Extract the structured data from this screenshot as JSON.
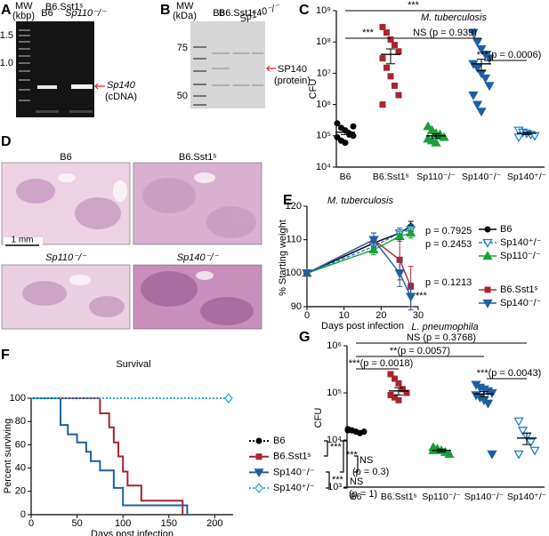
{
  "figure": {
    "letters": [
      "A",
      "B",
      "C",
      "D",
      "E",
      "F",
      "G"
    ],
    "gel_a": {
      "mw": "MW",
      "unit": "(kbp)",
      "lanes": [
        "B6",
        "B6.Sst1ˢ",
        "Sp110⁻/⁻"
      ],
      "markers": [
        "1.5",
        "1.0"
      ],
      "band": "Sp140",
      "band_note": "(cDNA)"
    },
    "gel_b": {
      "mw": "MW",
      "unit": "(kDa)",
      "lanes": [
        "B6",
        "B6.Sst1ˢ",
        "Sp140⁻/⁻"
      ],
      "markers": [
        "75",
        "50"
      ],
      "band": "SP140",
      "band_note": "(protein)"
    },
    "histology": {
      "panels": [
        "B6",
        "B6.Sst1ˢ",
        "Sp110⁻/⁻",
        "Sp140⁻/⁻"
      ],
      "scale": "1 mm"
    }
  },
  "chart_data": [
    {
      "type": "dotplot",
      "title": "M. tuberculosis",
      "ylabel": "CFU",
      "log": true,
      "ylim": [
        10000,
        1000000000
      ],
      "yticks": [
        {
          "value": 10000,
          "label": "10⁴"
        },
        {
          "value": 100000,
          "label": "10⁵"
        },
        {
          "value": 1000000,
          "label": "10⁶"
        },
        {
          "value": 10000000,
          "label": "10⁷"
        },
        {
          "value": 100000000,
          "label": "10⁸"
        },
        {
          "value": 1000000000,
          "label": "10⁹"
        }
      ],
      "groups": [
        {
          "name": "B6",
          "color": "#000000",
          "marker": "circle",
          "values": [
            250000,
            180000,
            150000,
            120000,
            100000,
            90000,
            70000,
            60000,
            110000,
            200000
          ],
          "mean": 130000,
          "error": 20000
        },
        {
          "name": "B6.Sst1ˢ",
          "color": "#a8262d",
          "marker": "square",
          "values": [
            300000000,
            200000000,
            120000000,
            80000000,
            50000000,
            30000000,
            15000000,
            8000000,
            4000000,
            2000000,
            1000000
          ],
          "mean": 40000000,
          "error": 20000000
        },
        {
          "name": "Sp110⁻/⁻",
          "color": "#1a9e3a",
          "marker": "triangle",
          "values": [
            200000,
            150000,
            120000,
            100000,
            90000,
            80000,
            70000,
            60000,
            110000
          ],
          "mean": 100000,
          "error": 15000
        },
        {
          "name": "Sp140⁻/⁻",
          "color": "#1f5fa0",
          "marker": "triangle-down",
          "values": [
            200000000,
            100000000,
            60000000,
            40000000,
            30000000,
            20000000,
            15000000,
            10000000,
            7000000,
            4000000,
            2000000,
            1000000,
            600000
          ],
          "mean": 20000000,
          "error": 8000000
        },
        {
          "name": "Sp140⁺/⁻",
          "color": "#1e7fc8",
          "marker": "triangle-down-open",
          "values": [
            150000,
            130000,
            120000,
            110000,
            100000,
            90000
          ],
          "mean": 120000,
          "error": 10000
        }
      ],
      "annotations": [
        "***",
        "***",
        "NS (p = 0.939)",
        "***(p = 0.0006)"
      ]
    },
    {
      "type": "line",
      "title": "M. tuberculosis",
      "xlabel": "Days post infection",
      "ylabel": "% Starting weight",
      "x": [
        0,
        18,
        25,
        28
      ],
      "xlim": [
        0,
        30
      ],
      "xticks": [
        0,
        10,
        20,
        30
      ],
      "ylim": [
        90,
        120
      ],
      "yticks": [
        90,
        100,
        110,
        120
      ],
      "series": [
        {
          "name": "B6",
          "color": "#000000",
          "marker": "circle",
          "style": "solid",
          "values": [
            100,
            109,
            112,
            114
          ],
          "error": [
            0,
            1.5,
            1.5,
            1.5
          ]
        },
        {
          "name": "Sp140⁺/⁻",
          "color": "#1e7fc8",
          "marker": "triangle-down-open",
          "style": "dashed",
          "values": [
            100,
            108,
            112,
            113
          ],
          "error": [
            0,
            1.5,
            1.5,
            1.5
          ]
        },
        {
          "name": "Sp110⁻/⁻",
          "color": "#1a9e3a",
          "marker": "triangle",
          "style": "solid",
          "values": [
            100,
            107,
            111,
            112
          ],
          "error": [
            0,
            1.5,
            1.5,
            1.5
          ]
        },
        {
          "name": "B6.Sst1ˢ",
          "color": "#a8262d",
          "marker": "square",
          "style": "solid",
          "values": [
            100,
            110,
            104,
            96
          ],
          "error": [
            0,
            2,
            6,
            6
          ]
        },
        {
          "name": "Sp140⁻/⁻",
          "color": "#1f5fa0",
          "marker": "triangle-down",
          "style": "solid",
          "values": [
            100,
            110,
            100,
            93
          ],
          "error": [
            0,
            2,
            4,
            4
          ]
        }
      ],
      "annotations": [
        "p = 0.7925",
        "p = 0.2453",
        "p = 0.1213",
        "***"
      ]
    },
    {
      "type": "step",
      "title": "Survival",
      "xlabel": "Days post infection",
      "ylabel": "Percent surviving",
      "xlim": [
        0,
        220
      ],
      "xticks": [
        0,
        50,
        100,
        150,
        200
      ],
      "ylim": [
        0,
        100
      ],
      "yticks": [
        0,
        20,
        40,
        60,
        80,
        100
      ],
      "series": [
        {
          "name": "B6",
          "color": "#000000",
          "marker": "circle",
          "style": "dotted",
          "x": [
            0,
            215
          ],
          "values": [
            100,
            100
          ]
        },
        {
          "name": "B6.Sst1ˢ",
          "color": "#a8262d",
          "marker": "square",
          "style": "solid",
          "x": [
            0,
            75,
            85,
            90,
            95,
            100,
            105,
            120,
            165
          ],
          "values": [
            100,
            87,
            75,
            62,
            50,
            37,
            25,
            12,
            0
          ]
        },
        {
          "name": "Sp140⁻/⁻",
          "color": "#1f5fa0",
          "marker": "triangle-down",
          "style": "solid",
          "x": [
            0,
            32,
            40,
            50,
            60,
            65,
            75,
            90,
            100,
            170
          ],
          "values": [
            100,
            77,
            69,
            62,
            54,
            46,
            38,
            23,
            8,
            0
          ]
        },
        {
          "name": "Sp140⁺/⁻",
          "color": "#2ab0d8",
          "marker": "diamond-open",
          "style": "dotted",
          "x": [
            0,
            215
          ],
          "values": [
            100,
            100
          ]
        }
      ],
      "annotations": [
        "***",
        "***",
        "NS",
        "(p = 0.3)",
        "***",
        "NS",
        "(p = 1)"
      ]
    },
    {
      "type": "dotplot",
      "title": "L. pneumophila",
      "ylabel": "CFU",
      "log": true,
      "ylim": [
        1000,
        1000000
      ],
      "yticks": [
        {
          "value": 1000,
          "label": "10³"
        },
        {
          "value": 10000,
          "label": "10⁴"
        },
        {
          "value": 100000,
          "label": "10⁵"
        },
        {
          "value": 1000000,
          "label": "10⁶"
        }
      ],
      "groups": [
        {
          "name": "B6",
          "color": "#000000",
          "marker": "circle",
          "values": [
            17000,
            16000,
            15000,
            14000,
            15000,
            16000
          ],
          "mean": 15000,
          "error": 800
        },
        {
          "name": "B6.Sst1ˢ",
          "color": "#a8262d",
          "marker": "square",
          "values": [
            250000,
            200000,
            160000,
            120000,
            100000,
            90000,
            80000,
            70000
          ],
          "mean": 110000,
          "error": 20000
        },
        {
          "name": "Sp110⁻/⁻",
          "color": "#1a9e3a",
          "marker": "triangle",
          "values": [
            7000,
            6500,
            6000,
            5500,
            5000,
            6000
          ],
          "mean": 6000,
          "error": 400
        },
        {
          "name": "Sp140⁻/⁻",
          "color": "#1f5fa0",
          "marker": "triangle-down",
          "values": [
            150000,
            130000,
            120000,
            110000,
            100000,
            90000,
            80000,
            70000,
            60000,
            5000
          ],
          "mean": 95000,
          "error": 12000
        },
        {
          "name": "Sp140⁺/⁻",
          "color": "#1e7fc8",
          "marker": "triangle-down-open",
          "values": [
            25000,
            16000,
            12000,
            9000,
            6000,
            5000
          ],
          "mean": 11000,
          "error": 3000
        }
      ],
      "annotations": [
        "NS (p = 0.3768)",
        "**(p = 0.0057)",
        "***(p = 0.0018)",
        "***(p = 0.0043)"
      ]
    }
  ]
}
